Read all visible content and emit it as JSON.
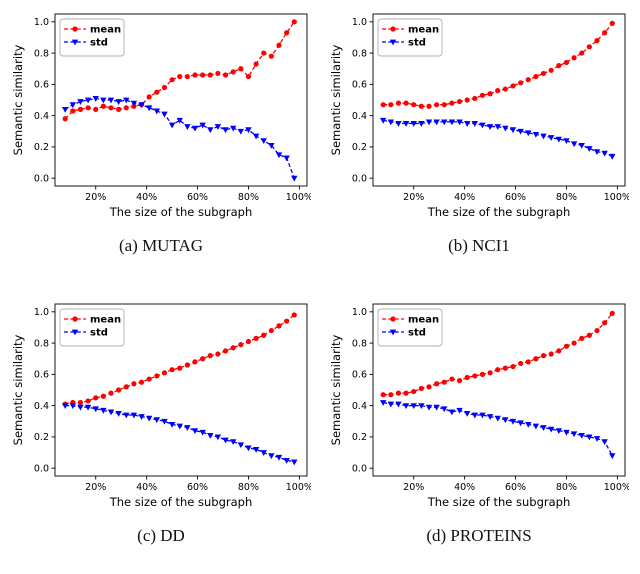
{
  "figure": {
    "background": "#ffffff",
    "axis_color": "#000000"
  },
  "chart_data": [
    {
      "id": "mutag",
      "caption": "(a) MUTAG",
      "type": "line",
      "title": "",
      "xlabel": "The size of the subgraph",
      "ylabel": "Semantic similarity",
      "xlim": [
        4,
        103
      ],
      "ylim": [
        -0.05,
        1.05
      ],
      "x_tick_values": [
        20,
        40,
        60,
        80,
        100
      ],
      "x_tick_labels": [
        "20%",
        "40%",
        "60%",
        "80%",
        "100%"
      ],
      "y_ticks": [
        0.0,
        0.2,
        0.4,
        0.6,
        0.8,
        1.0
      ],
      "legend_position": "upper left",
      "grid": false,
      "x": [
        8,
        11,
        14,
        17,
        20,
        23,
        26,
        29,
        32,
        35,
        38,
        41,
        44,
        47,
        50,
        53,
        56,
        59,
        62,
        65,
        68,
        71,
        74,
        77,
        80,
        83,
        86,
        89,
        92,
        95,
        98
      ],
      "series": [
        {
          "name": "mean",
          "color": "#ff0000",
          "marker": "circle",
          "linestyle": "dashed",
          "values": [
            0.38,
            0.43,
            0.44,
            0.45,
            0.44,
            0.46,
            0.45,
            0.44,
            0.45,
            0.46,
            0.47,
            0.52,
            0.55,
            0.58,
            0.63,
            0.65,
            0.65,
            0.66,
            0.66,
            0.66,
            0.67,
            0.66,
            0.68,
            0.7,
            0.65,
            0.73,
            0.8,
            0.78,
            0.85,
            0.93,
            1.0
          ]
        },
        {
          "name": "std",
          "color": "#0000ff",
          "marker": "triangle-down",
          "linestyle": "dashed",
          "values": [
            0.44,
            0.47,
            0.49,
            0.5,
            0.51,
            0.5,
            0.5,
            0.49,
            0.5,
            0.48,
            0.47,
            0.45,
            0.43,
            0.41,
            0.34,
            0.37,
            0.33,
            0.32,
            0.34,
            0.31,
            0.33,
            0.31,
            0.32,
            0.3,
            0.31,
            0.27,
            0.24,
            0.21,
            0.15,
            0.13,
            0.0
          ]
        }
      ]
    },
    {
      "id": "nci1",
      "caption": "(b) NCI1",
      "type": "line",
      "title": "",
      "xlabel": "The size of the subgraph",
      "ylabel": "Semantic similarity",
      "xlim": [
        4,
        103
      ],
      "ylim": [
        -0.05,
        1.05
      ],
      "x_tick_values": [
        20,
        40,
        60,
        80,
        100
      ],
      "x_tick_labels": [
        "20%",
        "40%",
        "60%",
        "80%",
        "100%"
      ],
      "y_ticks": [
        0.0,
        0.2,
        0.4,
        0.6,
        0.8,
        1.0
      ],
      "legend_position": "upper left",
      "grid": false,
      "x": [
        8,
        11,
        14,
        17,
        20,
        23,
        26,
        29,
        32,
        35,
        38,
        41,
        44,
        47,
        50,
        53,
        56,
        59,
        62,
        65,
        68,
        71,
        74,
        77,
        80,
        83,
        86,
        89,
        92,
        95,
        98
      ],
      "series": [
        {
          "name": "mean",
          "color": "#ff0000",
          "marker": "circle",
          "linestyle": "dashed",
          "values": [
            0.47,
            0.47,
            0.48,
            0.48,
            0.47,
            0.46,
            0.46,
            0.47,
            0.47,
            0.48,
            0.49,
            0.5,
            0.51,
            0.53,
            0.54,
            0.56,
            0.57,
            0.59,
            0.61,
            0.63,
            0.65,
            0.67,
            0.69,
            0.72,
            0.74,
            0.77,
            0.8,
            0.84,
            0.88,
            0.93,
            0.99
          ]
        },
        {
          "name": "std",
          "color": "#0000ff",
          "marker": "triangle-down",
          "linestyle": "dashed",
          "values": [
            0.37,
            0.36,
            0.35,
            0.35,
            0.35,
            0.35,
            0.36,
            0.36,
            0.36,
            0.36,
            0.36,
            0.35,
            0.35,
            0.34,
            0.33,
            0.33,
            0.32,
            0.31,
            0.3,
            0.29,
            0.28,
            0.27,
            0.26,
            0.25,
            0.24,
            0.22,
            0.21,
            0.19,
            0.17,
            0.16,
            0.14
          ]
        }
      ]
    },
    {
      "id": "dd",
      "caption": "(c) DD",
      "type": "line",
      "title": "",
      "xlabel": "The size of the subgraph",
      "ylabel": "Semantic similarity",
      "xlim": [
        4,
        103
      ],
      "ylim": [
        -0.05,
        1.05
      ],
      "x_tick_values": [
        20,
        40,
        60,
        80,
        100
      ],
      "x_tick_labels": [
        "20%",
        "40%",
        "60%",
        "80%",
        "100%"
      ],
      "y_ticks": [
        0.0,
        0.2,
        0.4,
        0.6,
        0.8,
        1.0
      ],
      "legend_position": "upper left",
      "grid": false,
      "x": [
        8,
        11,
        14,
        17,
        20,
        23,
        26,
        29,
        32,
        35,
        38,
        41,
        44,
        47,
        50,
        53,
        56,
        59,
        62,
        65,
        68,
        71,
        74,
        77,
        80,
        83,
        86,
        89,
        92,
        95,
        98
      ],
      "series": [
        {
          "name": "mean",
          "color": "#ff0000",
          "marker": "circle",
          "linestyle": "dashed",
          "values": [
            0.41,
            0.42,
            0.42,
            0.43,
            0.45,
            0.46,
            0.48,
            0.5,
            0.52,
            0.54,
            0.55,
            0.57,
            0.59,
            0.61,
            0.63,
            0.64,
            0.66,
            0.68,
            0.7,
            0.72,
            0.73,
            0.75,
            0.77,
            0.79,
            0.81,
            0.83,
            0.85,
            0.88,
            0.91,
            0.94,
            0.98
          ]
        },
        {
          "name": "std",
          "color": "#0000ff",
          "marker": "triangle-down",
          "linestyle": "dashed",
          "values": [
            0.4,
            0.4,
            0.39,
            0.39,
            0.38,
            0.37,
            0.36,
            0.35,
            0.34,
            0.34,
            0.33,
            0.32,
            0.31,
            0.3,
            0.28,
            0.27,
            0.26,
            0.24,
            0.23,
            0.21,
            0.2,
            0.18,
            0.17,
            0.15,
            0.13,
            0.12,
            0.1,
            0.08,
            0.07,
            0.05,
            0.04
          ]
        }
      ]
    },
    {
      "id": "proteins",
      "caption": "(d) PROTEINS",
      "type": "line",
      "title": "",
      "xlabel": "The size of the subgraph",
      "ylabel": "Semantic similarity",
      "xlim": [
        4,
        103
      ],
      "ylim": [
        -0.05,
        1.05
      ],
      "x_tick_values": [
        20,
        40,
        60,
        80,
        100
      ],
      "x_tick_labels": [
        "20%",
        "40%",
        "60%",
        "80%",
        "100%"
      ],
      "y_ticks": [
        0.0,
        0.2,
        0.4,
        0.6,
        0.8,
        1.0
      ],
      "legend_position": "upper left",
      "grid": false,
      "x": [
        8,
        11,
        14,
        17,
        20,
        23,
        26,
        29,
        32,
        35,
        38,
        41,
        44,
        47,
        50,
        53,
        56,
        59,
        62,
        65,
        68,
        71,
        74,
        77,
        80,
        83,
        86,
        89,
        92,
        95,
        98
      ],
      "series": [
        {
          "name": "mean",
          "color": "#ff0000",
          "marker": "circle",
          "linestyle": "dashed",
          "values": [
            0.47,
            0.47,
            0.48,
            0.48,
            0.49,
            0.51,
            0.52,
            0.54,
            0.55,
            0.57,
            0.56,
            0.58,
            0.59,
            0.6,
            0.61,
            0.63,
            0.64,
            0.65,
            0.67,
            0.68,
            0.7,
            0.72,
            0.73,
            0.75,
            0.78,
            0.8,
            0.83,
            0.85,
            0.88,
            0.93,
            0.99
          ]
        },
        {
          "name": "std",
          "color": "#0000ff",
          "marker": "triangle-down",
          "linestyle": "dashed",
          "values": [
            0.42,
            0.41,
            0.41,
            0.4,
            0.4,
            0.4,
            0.39,
            0.39,
            0.38,
            0.36,
            0.37,
            0.35,
            0.34,
            0.34,
            0.33,
            0.32,
            0.31,
            0.3,
            0.29,
            0.28,
            0.27,
            0.26,
            0.25,
            0.24,
            0.23,
            0.22,
            0.21,
            0.2,
            0.19,
            0.17,
            0.08
          ]
        }
      ]
    }
  ]
}
